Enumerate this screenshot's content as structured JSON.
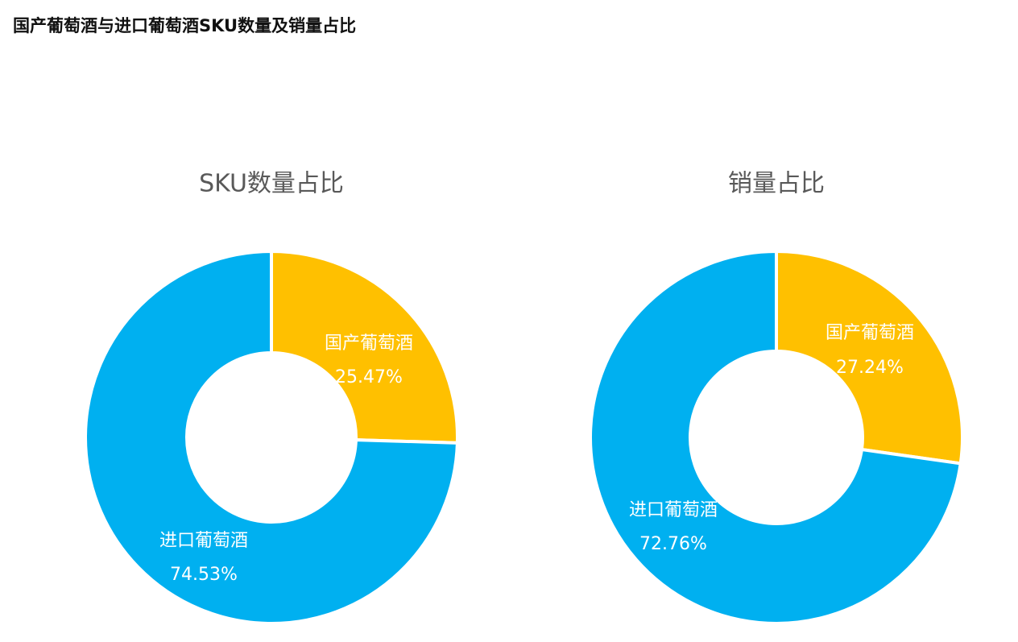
{
  "page": {
    "title": "国产葡萄酒与进口葡萄酒SKU数量及销量占比"
  },
  "chart_data": [
    {
      "type": "pie",
      "title": "SKU数量占比",
      "slices": [
        {
          "label": "国产葡萄酒",
          "value": 25.47,
          "display": "25.47%",
          "color": "#FFC000"
        },
        {
          "label": "进口葡萄酒",
          "value": 74.53,
          "display": "74.53%",
          "color": "#00B0F0"
        }
      ],
      "donut": true,
      "legend": "none",
      "labels": "inside"
    },
    {
      "type": "pie",
      "title": "销量占比",
      "slices": [
        {
          "label": "国产葡萄酒",
          "value": 27.24,
          "display": "27.24%",
          "color": "#FFC000"
        },
        {
          "label": "进口葡萄酒",
          "value": 72.76,
          "display": "72.76%",
          "color": "#00B0F0"
        }
      ],
      "donut": true,
      "legend": "none",
      "labels": "inside"
    }
  ]
}
